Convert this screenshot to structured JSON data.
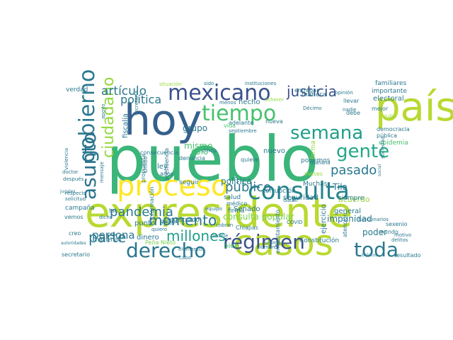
{
  "palette": {
    "c1": "#b8d930",
    "c2": "#2c728e",
    "c3": "#48c16e",
    "c4": "#3bb57a",
    "c5": "#fde725",
    "c6": "#26828e",
    "c7": "#35608d",
    "c8": "#3a518b",
    "c9": "#22a884",
    "c10": "#2a788e",
    "c11": "#1f9e89",
    "c12": "#7ad151",
    "c13": "#414487",
    "c14": "#482878",
    "c15": "#440154",
    "c16": "#95d840"
  },
  "words": [
    {
      "text": "pueblo",
      "color": "c4"
    },
    {
      "text": "expresidente",
      "color": "c1"
    },
    {
      "text": "casos",
      "color": "c1"
    },
    {
      "text": "país",
      "color": "c1"
    },
    {
      "text": "hoy",
      "color": "c7"
    },
    {
      "text": "proceso",
      "color": "c5"
    },
    {
      "text": "consulta",
      "color": "c6"
    },
    {
      "text": "gobierno",
      "color": "c10"
    },
    {
      "text": "mexicano",
      "color": "c8"
    },
    {
      "text": "tiempo",
      "color": "c3"
    },
    {
      "text": "derecho",
      "color": "c10"
    },
    {
      "text": "semana",
      "color": "c11"
    },
    {
      "text": "asunto",
      "color": "c2"
    },
    {
      "text": "justicia",
      "color": "c8"
    },
    {
      "text": "gente",
      "color": "c9"
    },
    {
      "text": "toda",
      "color": "c10"
    },
    {
      "text": "ciudadano",
      "color": "c16"
    },
    {
      "text": "régimen",
      "color": "c8"
    },
    {
      "text": "parte",
      "color": "c10"
    },
    {
      "text": "pasado",
      "color": "c10"
    },
    {
      "text": "millones",
      "color": "c11"
    },
    {
      "text": "momento",
      "color": "c10"
    },
    {
      "text": "pandemia",
      "color": "c10"
    },
    {
      "text": "artículo",
      "color": "c10"
    },
    {
      "text": "política",
      "color": "c10"
    },
    {
      "text": "persona",
      "color": "c10"
    },
    {
      "text": "público",
      "color": "c10"
    },
    {
      "text": "política",
      "color": "c10"
    },
    {
      "text": "consulta popular",
      "color": "c12"
    },
    {
      "text": "impunidad",
      "color": "c10"
    },
    {
      "text": "grupo",
      "color": "c10"
    },
    {
      "text": "mismo",
      "color": "c3"
    },
    {
      "text": "sólo",
      "color": "c3"
    },
    {
      "text": "hecho",
      "color": "c10"
    },
    {
      "text": "nuevo",
      "color": "c10"
    },
    {
      "text": "Senado",
      "color": "c10"
    },
    {
      "text": "general",
      "color": "c10"
    },
    {
      "text": "acuerdo",
      "color": "c16"
    },
    {
      "text": "Tila",
      "color": "c10"
    },
    {
      "text": "Muchas",
      "color": "c10"
    },
    {
      "text": "fiscalía",
      "color": "c10"
    },
    {
      "text": "salud",
      "color": "c10"
    },
    {
      "text": "dinero",
      "color": "c10"
    },
    {
      "text": "punto",
      "color": "c10"
    },
    {
      "text": "ley",
      "color": "c10"
    },
    {
      "text": "años",
      "color": "c10"
    },
    {
      "text": "poder",
      "color": "c10"
    },
    {
      "text": "bien",
      "color": "c3"
    },
    {
      "text": "ejercicio",
      "color": "c10"
    },
    {
      "text": "registrado",
      "color": "c10"
    },
    {
      "text": "Peña Nieto",
      "color": "c12"
    },
    {
      "text": "seguridad",
      "color": "c10"
    },
    {
      "text": "corrupción",
      "color": "c10"
    },
    {
      "text": "podemos",
      "color": "c10"
    },
    {
      "text": "Constitución",
      "color": "c10"
    },
    {
      "text": "firma",
      "color": "c10"
    },
    {
      "text": "médico",
      "color": "c10"
    },
    {
      "text": "seguir",
      "color": "c10"
    },
    {
      "text": "quiere",
      "color": "c10"
    },
    {
      "text": "adelante",
      "color": "c10"
    },
    {
      "text": "cinco",
      "color": "c10"
    },
    {
      "text": "denuncia",
      "color": "c10"
    },
    {
      "text": "consecuencia",
      "color": "c10"
    },
    {
      "text": "presidencia",
      "color": "c10"
    },
    {
      "text": "propuesta",
      "color": "c10"
    },
    {
      "text": "información",
      "color": "c10"
    },
    {
      "text": "Unido",
      "color": "c10"
    },
    {
      "text": "situación",
      "color": "c16"
    },
    {
      "text": "sido",
      "color": "c10"
    },
    {
      "text": "instituciones",
      "color": "c10"
    },
    {
      "text": "manera",
      "color": "c10"
    },
    {
      "text": "familiares",
      "color": "c10"
    },
    {
      "text": "importante",
      "color": "c10"
    },
    {
      "text": "electoral",
      "color": "c10"
    },
    {
      "text": "democracia",
      "color": "c10"
    },
    {
      "text": "pública",
      "color": "c10"
    },
    {
      "text": "epidemia",
      "color": "c3"
    },
    {
      "text": "sociedad",
      "color": "c10"
    },
    {
      "text": "siempre",
      "color": "c10"
    },
    {
      "text": "mundo",
      "color": "c10"
    },
    {
      "text": "delitos",
      "color": "c10"
    },
    {
      "text": "sexenio",
      "color": "c10"
    },
    {
      "text": "motivo",
      "color": "c10"
    },
    {
      "text": "resultado",
      "color": "c10"
    },
    {
      "text": "enfrentamiento",
      "color": "c10"
    },
    {
      "text": "atención",
      "color": "c10"
    },
    {
      "text": "verdad",
      "color": "c10"
    },
    {
      "text": "campaña",
      "color": "c10"
    },
    {
      "text": "respecto",
      "color": "c10"
    },
    {
      "text": "solicitud",
      "color": "c10"
    },
    {
      "text": "vemos",
      "color": "c10"
    },
    {
      "text": "creo",
      "color": "c10"
    },
    {
      "text": "autoridades",
      "color": "c10"
    },
    {
      "text": "haciendo",
      "color": "c10"
    },
    {
      "text": "secretario",
      "color": "c10"
    },
    {
      "text": "elementos",
      "color": "c10"
    },
    {
      "text": "cabo",
      "color": "c10"
    },
    {
      "text": "países",
      "color": "c10"
    },
    {
      "text": "cobran",
      "color": "c10"
    },
    {
      "text": "Chiapas",
      "color": "c10"
    },
    {
      "text": "COVID",
      "color": "c10"
    },
    {
      "text": "nombre",
      "color": "c10"
    },
    {
      "text": "tal",
      "color": "c10"
    },
    {
      "text": "equipo",
      "color": "c10"
    },
    {
      "text": "vida",
      "color": "c3"
    },
    {
      "text": "nueva",
      "color": "c10"
    },
    {
      "text": "entregar",
      "color": "c10"
    },
    {
      "text": "opinión",
      "color": "c10"
    },
    {
      "text": "llevar",
      "color": "c10"
    },
    {
      "text": "nadie",
      "color": "c10"
    },
    {
      "text": "Décimo",
      "color": "c10"
    },
    {
      "text": "debe",
      "color": "c10"
    },
    {
      "text": "mejor",
      "color": "c10"
    },
    {
      "text": "Julio",
      "color": "c16"
    },
    {
      "text": "mañana",
      "color": "c10"
    },
    {
      "text": "meses",
      "color": "c16"
    },
    {
      "text": "forma",
      "color": "c16"
    },
    {
      "text": "menos",
      "color": "c10"
    },
    {
      "text": "septiembre",
      "color": "c10"
    },
    {
      "text": "Scherer",
      "color": "c16"
    },
    {
      "text": "apoyo",
      "color": "c10"
    },
    {
      "text": "secretaria",
      "color": "c10"
    },
    {
      "text": "doctor",
      "color": "c10"
    },
    {
      "text": "después",
      "color": "c10"
    },
    {
      "text": "mensaje",
      "color": "c10"
    },
    {
      "text": "dicho",
      "color": "c10"
    },
    {
      "text": "jugales",
      "color": "c10"
    },
    {
      "text": "ultima",
      "color": "c10"
    },
    {
      "text": "Gatell",
      "color": "c10"
    },
    {
      "text": "pedirle",
      "color": "c10"
    },
    {
      "text": "pesos",
      "color": "c10"
    },
    {
      "text": "quiero",
      "color": "c10"
    },
    {
      "text": "boletos",
      "color": "c10"
    },
    {
      "text": "social",
      "color": "c10"
    },
    {
      "text": "funcionarios",
      "color": "c10"
    },
    {
      "text": "violencia",
      "color": "c10"
    },
    {
      "text": "libertades",
      "color": "c10"
    }
  ]
}
